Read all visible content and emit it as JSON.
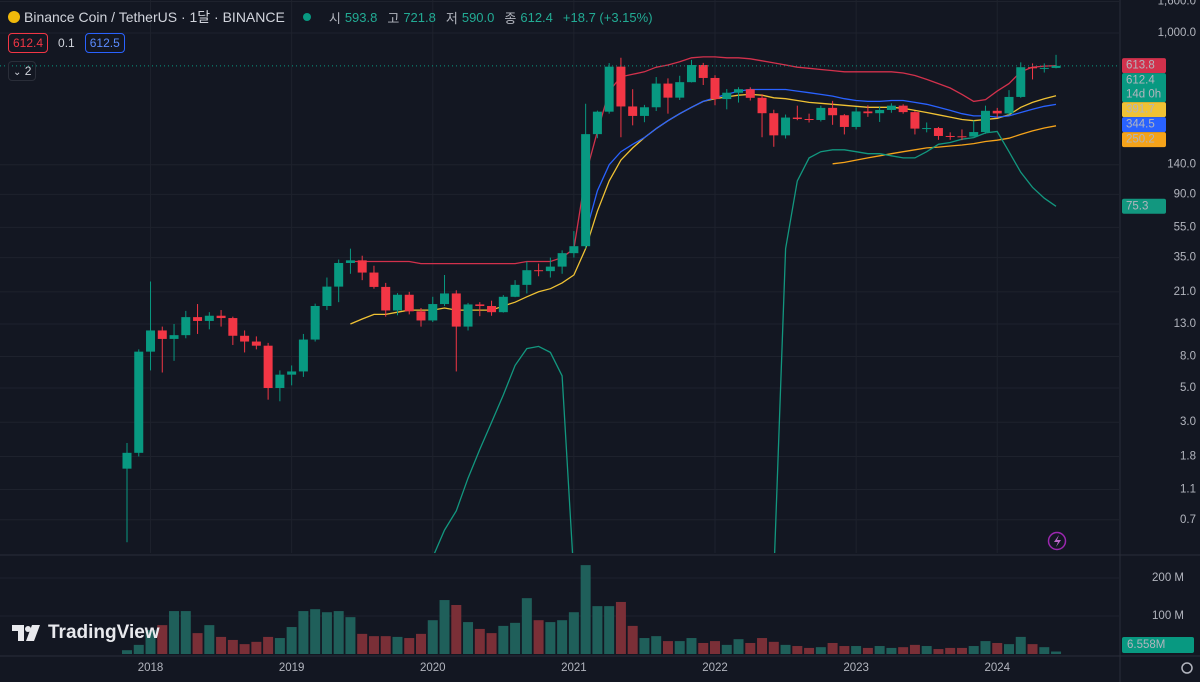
{
  "header": {
    "symbol": "Binance Coin / TetherUS · 1달 · BINANCE",
    "open_label": "시",
    "open": "593.8",
    "high_label": "고",
    "high": "721.8",
    "low_label": "저",
    "low": "590.0",
    "close_label": "종",
    "close": "612.4",
    "change": "+18.7 (+3.15%)",
    "bid": "612.4",
    "spread": "0.1",
    "ask": "612.5",
    "indicators": "2",
    "brand": "TradingView"
  },
  "chart_data": {
    "type": "candlestick",
    "log_scale": true,
    "grid": true,
    "up_color": "#089981",
    "down_color": "#f23645",
    "volume_up_color": "#1f5f5a",
    "volume_down_color": "#7a2f37",
    "categories": [
      null,
      null,
      "2018",
      null,
      null,
      null,
      null,
      null,
      null,
      null,
      null,
      null,
      null,
      null,
      "2019",
      null,
      null,
      null,
      null,
      null,
      null,
      null,
      null,
      null,
      null,
      null,
      "2020",
      null,
      null,
      null,
      null,
      null,
      null,
      null,
      null,
      null,
      null,
      null,
      "2021",
      null,
      null,
      null,
      null,
      null,
      null,
      null,
      null,
      null,
      null,
      null,
      "2022",
      null,
      null,
      null,
      null,
      null,
      null,
      null,
      null,
      null,
      null,
      null,
      "2023",
      null,
      null,
      null,
      null,
      null,
      null,
      null,
      null,
      null,
      null,
      null,
      "2024",
      null,
      null,
      null,
      null,
      null
    ],
    "candles": {
      "open": [
        1.5,
        1.9,
        8.6,
        11.8,
        10.4,
        11.0,
        14.4,
        13.6,
        14.7,
        14.2,
        10.9,
        10.0,
        9.4,
        5.0,
        6.1,
        6.4,
        10.3,
        17.0,
        22.7,
        32.3,
        33.6,
        28.0,
        22.6,
        15.9,
        20.1,
        15.7,
        13.7,
        17.5,
        20.5,
        12.5,
        17.4,
        17.0,
        15.5,
        19.5,
        23.3,
        29.0,
        28.6,
        30.6,
        37.4,
        41.5,
        221,
        309,
        605,
        334,
        290,
        330,
        470,
        381,
        480,
        620,
        511,
        373,
        410,
        432,
        380,
        302,
        217,
        283,
        277,
        273,
        327,
        293,
        246,
        310,
        302,
        317,
        338,
        307,
        240,
        242,
        215,
        214,
        213,
        228,
        313,
        301,
        385,
        600,
        590,
        593.8
      ],
      "high": [
        2.2,
        8.9,
        24.5,
        12.5,
        13,
        15.8,
        17.5,
        15.5,
        16.0,
        14.5,
        11.8,
        10.8,
        9.8,
        6.5,
        7.0,
        11.2,
        17.6,
        26.0,
        34.0,
        40.0,
        36.0,
        31.0,
        24.0,
        20.6,
        21.0,
        16.5,
        19.5,
        27.0,
        21.5,
        17.8,
        18.0,
        18.4,
        20.0,
        25.0,
        33.0,
        32.0,
        35.0,
        39.0,
        52.0,
        348,
        314,
        638,
        691,
        432,
        342,
        518,
        508,
        528,
        669,
        640,
        532,
        433,
        445,
        445,
        401,
        318,
        296,
        338,
        300,
        338,
        363,
        298,
        330,
        340,
        335,
        350,
        345,
        312,
        263,
        246,
        227,
        237,
        271,
        338,
        327,
        426,
        645,
        635,
        635,
        721.8
      ],
      "low": [
        0.5,
        1.8,
        6.5,
        6.3,
        7.5,
        10.5,
        11.2,
        12.0,
        12.5,
        9.5,
        8.5,
        8.9,
        4.2,
        4.1,
        5.2,
        5.9,
        10.0,
        16.0,
        18.0,
        27.5,
        25.0,
        22.0,
        14.5,
        14.8,
        15.0,
        12.5,
        13.4,
        17.0,
        6.4,
        11.8,
        14.6,
        14.7,
        15.4,
        19.4,
        20.5,
        26.5,
        26.0,
        27.5,
        35.0,
        40.0,
        208,
        300,
        211,
        252,
        264,
        312,
        300,
        368,
        478,
        460,
        340,
        320,
        354,
        365,
        211,
        183,
        207,
        272,
        263,
        267,
        254,
        220,
        237,
        286,
        265,
        304,
        300,
        220,
        227,
        203,
        203,
        202,
        213,
        222,
        283,
        294,
        380,
        500,
        554,
        590.0
      ],
      "close": [
        1.9,
        8.6,
        11.8,
        10.4,
        11.0,
        14.4,
        13.6,
        14.7,
        14.2,
        10.9,
        10.0,
        9.4,
        5.0,
        6.1,
        6.4,
        10.3,
        17.0,
        22.7,
        32.3,
        33.6,
        28.0,
        22.6,
        15.9,
        20.1,
        15.7,
        13.7,
        17.5,
        20.5,
        12.5,
        17.4,
        17.0,
        15.5,
        19.5,
        23.3,
        29.0,
        28.6,
        30.6,
        37.4,
        41.5,
        221,
        309,
        605,
        334,
        290,
        330,
        470,
        381,
        480,
        620,
        511,
        373,
        410,
        432,
        380,
        302,
        217,
        283,
        277,
        273,
        327,
        293,
        246,
        310,
        302,
        317,
        338,
        307,
        240,
        242,
        215,
        214,
        213,
        228,
        313,
        301,
        385,
        600,
        590,
        593.8,
        612.4
      ]
    },
    "countdown": "14d 0h",
    "lines": [
      {
        "color": "#d2314c",
        "tag_text": "#ffffff",
        "values": [
          null,
          null,
          null,
          null,
          null,
          null,
          null,
          null,
          null,
          null,
          null,
          null,
          null,
          null,
          null,
          null,
          null,
          null,
          null,
          33,
          33,
          33,
          33,
          33,
          33,
          32,
          32,
          32,
          32,
          32,
          32,
          32,
          32,
          32,
          33,
          33,
          33,
          35,
          40,
          120,
          230,
          420,
          520,
          540,
          560,
          600,
          620,
          650,
          690,
          700,
          700,
          690,
          690,
          680,
          660,
          640,
          620,
          600,
          590,
          580,
          570,
          560,
          560,
          560,
          560,
          560,
          550,
          530,
          500,
          470,
          440,
          400,
          360,
          370,
          420,
          470,
          560,
          600,
          610,
          613.8
        ]
      },
      {
        "color": "#f0c234",
        "tag_text": "#131722",
        "values": [
          null,
          null,
          null,
          null,
          null,
          null,
          null,
          null,
          null,
          null,
          null,
          null,
          null,
          null,
          null,
          null,
          null,
          null,
          null,
          13,
          14,
          15,
          15,
          15.5,
          16,
          16,
          16,
          16.5,
          16,
          16,
          16,
          16,
          17,
          18,
          19.5,
          21,
          22,
          24,
          27,
          40,
          70,
          110,
          150,
          180,
          210,
          240,
          270,
          300,
          330,
          360,
          375,
          385,
          395,
          400,
          395,
          380,
          375,
          365,
          355,
          350,
          345,
          340,
          335,
          330,
          330,
          330,
          325,
          315,
          305,
          295,
          285,
          275,
          270,
          275,
          280,
          295,
          330,
          355,
          375,
          391.7
        ]
      },
      {
        "color": "#2962ff",
        "tag_text": "#ffffff",
        "values": [
          null,
          null,
          null,
          null,
          null,
          null,
          null,
          null,
          null,
          null,
          null,
          null,
          null,
          null,
          null,
          null,
          null,
          null,
          null,
          null,
          null,
          null,
          null,
          null,
          null,
          null,
          null,
          null,
          null,
          null,
          null,
          null,
          null,
          null,
          null,
          null,
          null,
          null,
          null,
          50,
          95,
          140,
          170,
          190,
          210,
          240,
          270,
          300,
          330,
          360,
          380,
          400,
          420,
          430,
          430,
          430,
          430,
          420,
          410,
          400,
          390,
          375,
          365,
          360,
          360,
          365,
          365,
          355,
          345,
          330,
          315,
          300,
          290,
          290,
          285,
          290,
          305,
          320,
          335,
          344.5
        ]
      },
      {
        "color": "#f5a31a",
        "tag_text": "#131722",
        "values": [
          null,
          null,
          null,
          null,
          null,
          null,
          null,
          null,
          null,
          null,
          null,
          null,
          null,
          null,
          null,
          null,
          null,
          null,
          null,
          null,
          null,
          null,
          null,
          null,
          null,
          null,
          null,
          null,
          null,
          null,
          null,
          null,
          null,
          null,
          null,
          null,
          null,
          null,
          null,
          null,
          null,
          null,
          null,
          null,
          null,
          null,
          null,
          null,
          null,
          null,
          null,
          null,
          null,
          null,
          null,
          null,
          null,
          null,
          null,
          null,
          142,
          145,
          150,
          155,
          160,
          165,
          170,
          175,
          180,
          182,
          185,
          188,
          192,
          198,
          202,
          208,
          220,
          232,
          242,
          250.2
        ]
      },
      {
        "color": "#12977f",
        "tag_text": "#ffffff",
        "values": [
          null,
          null,
          null,
          null,
          null,
          null,
          null,
          null,
          null,
          null,
          null,
          null,
          null,
          null,
          null,
          null,
          null,
          null,
          null,
          null,
          null,
          null,
          null,
          null,
          null,
          null,
          0.4,
          0.6,
          0.8,
          1.3,
          2.0,
          3.0,
          4.5,
          7.0,
          9.0,
          9.3,
          8.5,
          6.0,
          0.3,
          null,
          null,
          null,
          null,
          null,
          null,
          null,
          null,
          null,
          null,
          null,
          null,
          null,
          null,
          null,
          null,
          0.3,
          40,
          110,
          155,
          170,
          175,
          175,
          170,
          165,
          165,
          160,
          155,
          155,
          170,
          190,
          195,
          205,
          210,
          225,
          230,
          170,
          125,
          100,
          85,
          75.3
        ]
      }
    ],
    "ylim": [
      0.426,
      1636
    ],
    "yticks": [
      {
        "value": 1600,
        "label": "1,600.0"
      },
      {
        "value": 1000,
        "label": "1,000.0"
      },
      {
        "value": 140,
        "label": "140.0"
      },
      {
        "value": 90,
        "label": "90.0"
      },
      {
        "value": 55,
        "label": "55.0"
      },
      {
        "value": 35,
        "label": "35.0"
      },
      {
        "value": 21,
        "label": "21.0"
      },
      {
        "value": 13,
        "label": "13.0"
      },
      {
        "value": 8,
        "label": "8.0"
      },
      {
        "value": 5,
        "label": "5.0"
      },
      {
        "value": 3,
        "label": "3.0"
      },
      1.8,
      1.1,
      0.7
    ],
    "volume": {
      "values": [
        10,
        24,
        63,
        76,
        113,
        113,
        55,
        76,
        45,
        37,
        26,
        32,
        45,
        42,
        71,
        113,
        118,
        110,
        113,
        97,
        53,
        47,
        47,
        45,
        42,
        53,
        89,
        142,
        129,
        84,
        66,
        55,
        74,
        82,
        147,
        89,
        84,
        89,
        110,
        234,
        126,
        126,
        137,
        74,
        42,
        47,
        34,
        34,
        42,
        29,
        34,
        24,
        39,
        29,
        42,
        32,
        24,
        21,
        16,
        18,
        29,
        21,
        21,
        16,
        21,
        16,
        18,
        24,
        21,
        13,
        16,
        16,
        21,
        34,
        29,
        26,
        45,
        26,
        18,
        6.558
      ],
      "value_labels": {
        "79": "6.558M"
      },
      "ylim": [
        0,
        258
      ],
      "yticks": [
        {
          "value": 100,
          "label": "100 M"
        },
        {
          "value": 200,
          "label": "200 M"
        }
      ]
    }
  }
}
